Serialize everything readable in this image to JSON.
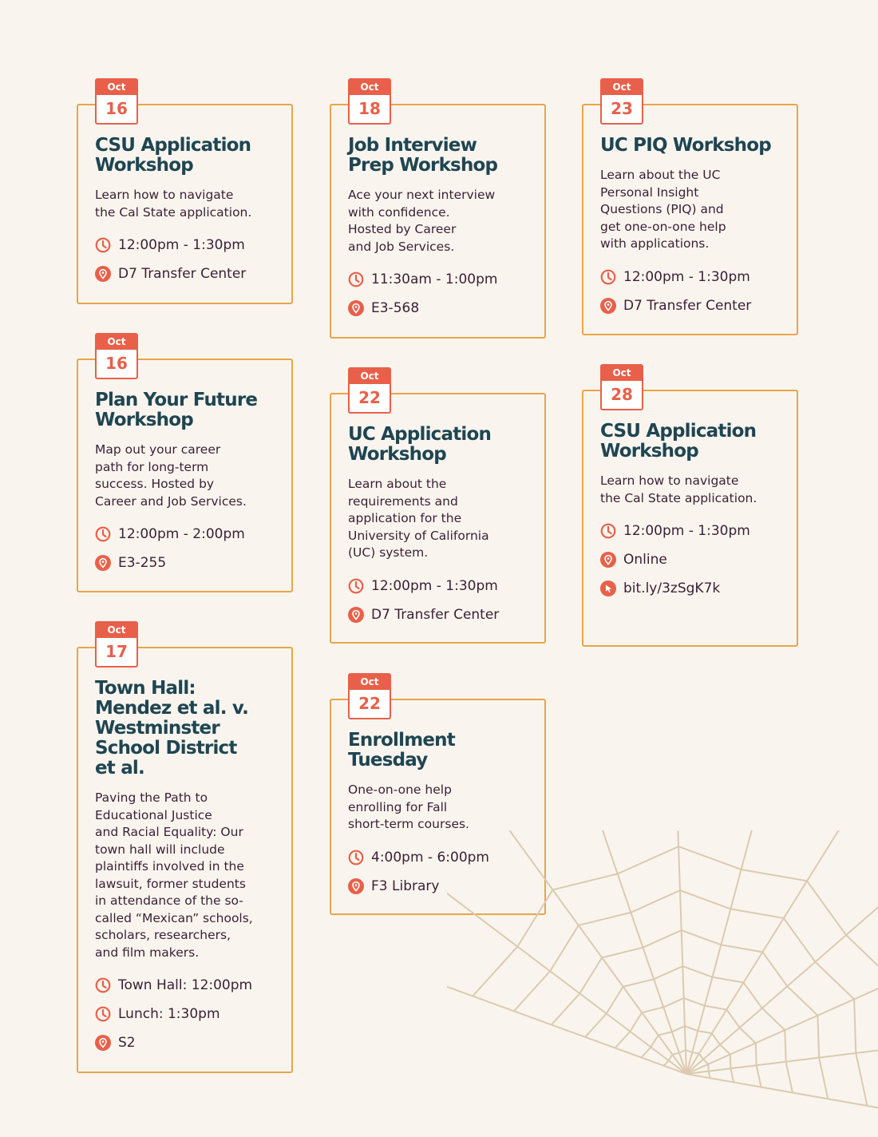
{
  "colors": {
    "background": "#f9f5ee",
    "card_border": "#e9a548",
    "accent": "#e8604a",
    "title": "#1f4552",
    "text": "#3a1f35",
    "web": "#dccab0"
  },
  "events": [
    {
      "month": "Oct",
      "day": "16",
      "title": "CSU Application\nWorkshop",
      "description": "Learn how to navigate\nthe Cal State application.",
      "details": [
        {
          "icon": "clock-icon",
          "text": "12:00pm - 1:30pm"
        },
        {
          "icon": "location-pin-icon",
          "text": "D7 Transfer Center"
        }
      ]
    },
    {
      "month": "Oct",
      "day": "18",
      "title": "Job Interview\nPrep Workshop",
      "description": "Ace your next interview\nwith confidence.\nHosted by Career\nand Job Services.",
      "details": [
        {
          "icon": "clock-icon",
          "text": "11:30am - 1:00pm"
        },
        {
          "icon": "location-pin-icon",
          "text": "E3-568"
        }
      ]
    },
    {
      "month": "Oct",
      "day": "23",
      "title": "UC PIQ Workshop",
      "description": "Learn about the UC\nPersonal Insight\nQuestions (PIQ) and\nget one-on-one help\nwith applications.",
      "details": [
        {
          "icon": "clock-icon",
          "text": "12:00pm - 1:30pm"
        },
        {
          "icon": "location-pin-icon",
          "text": "D7 Transfer Center"
        }
      ]
    },
    {
      "month": "Oct",
      "day": "16",
      "title": "Plan Your Future\nWorkshop",
      "description": "Map out your career\npath for long-term\nsuccess. Hosted by\nCareer and Job Services.",
      "details": [
        {
          "icon": "clock-icon",
          "text": "12:00pm - 2:00pm"
        },
        {
          "icon": "location-pin-icon",
          "text": "E3-255"
        }
      ]
    },
    {
      "month": "Oct",
      "day": "22",
      "title": "UC Application\nWorkshop",
      "description": "Learn about the\nrequirements and\napplication for the\nUniversity of California\n(UC) system.",
      "details": [
        {
          "icon": "clock-icon",
          "text": "12:00pm - 1:30pm"
        },
        {
          "icon": "location-pin-icon",
          "text": "D7 Transfer Center"
        }
      ]
    },
    {
      "month": "Oct",
      "day": "28",
      "title": "CSU Application\nWorkshop",
      "description": "Learn how to navigate\nthe Cal State application.",
      "details": [
        {
          "icon": "clock-icon",
          "text": "12:00pm - 1:30pm"
        },
        {
          "icon": "location-pin-icon",
          "text": "Online"
        },
        {
          "icon": "cursor-link-icon",
          "text": "bit.ly/3zSgK7k"
        }
      ]
    },
    {
      "month": "Oct",
      "day": "17",
      "title": "Town Hall:\nMendez et al. v.\nWestminster\nSchool District\net al.",
      "description": "Paving the Path to\nEducational Justice\nand Racial Equality: Our\ntown hall will include\nplaintiffs involved in the\nlawsuit, former students\nin attendance of the so-\ncalled “Mexican” schools,\nscholars, researchers,\nand film makers.",
      "details": [
        {
          "icon": "clock-icon",
          "text": "Town Hall: 12:00pm"
        },
        {
          "icon": "clock-icon",
          "text": "Lunch: 1:30pm"
        },
        {
          "icon": "location-pin-icon",
          "text": "S2"
        }
      ]
    },
    {
      "month": "Oct",
      "day": "22",
      "title": "Enrollment\nTuesday",
      "description": "One-on-one help\nenrolling for Fall\nshort-term courses.",
      "details": [
        {
          "icon": "clock-icon",
          "text": "4:00pm - 6:00pm"
        },
        {
          "icon": "location-pin-icon",
          "text": "F3 Library"
        }
      ]
    }
  ]
}
